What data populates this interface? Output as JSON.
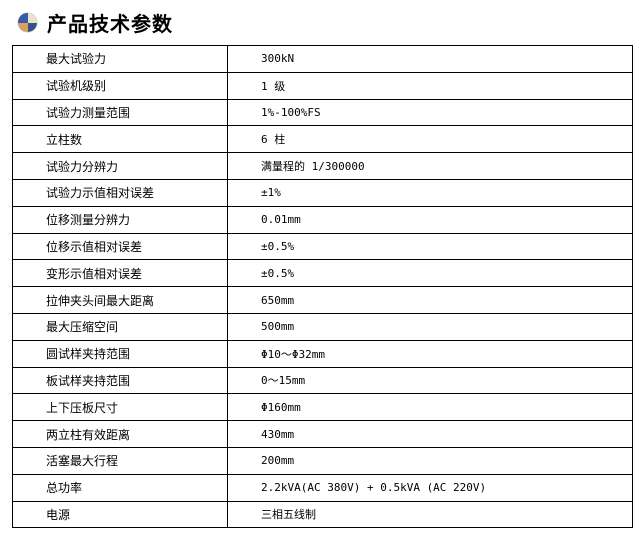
{
  "header": {
    "title": "产品技术参数",
    "icon": "globe-icon"
  },
  "specs": [
    {
      "label": "最大试验力",
      "value": "300kN"
    },
    {
      "label": "试验机级别",
      "value": "1 级"
    },
    {
      "label": "试验力测量范围",
      "value": "1%-100%FS"
    },
    {
      "label": "立柱数",
      "value": "6 柱"
    },
    {
      "label": "试验力分辨力",
      "value": "满量程的 1/300000"
    },
    {
      "label": "试验力示值相对误差",
      "value": "±1%"
    },
    {
      "label": "位移测量分辨力",
      "value": "0.01mm"
    },
    {
      "label": "位移示值相对误差",
      "value": "±0.5%"
    },
    {
      "label": "变形示值相对误差",
      "value": "±0.5%"
    },
    {
      "label": "拉伸夹头间最大距离",
      "value": "650mm"
    },
    {
      "label": "最大压缩空间",
      "value": "500mm"
    },
    {
      "label": "圆试样夹持范围",
      "value": "Φ10～Φ32mm"
    },
    {
      "label": "板试样夹持范围",
      "value": "0～15mm"
    },
    {
      "label": "上下压板尺寸",
      "value": "Φ160mm"
    },
    {
      "label": "两立柱有效距离",
      "value": "430mm"
    },
    {
      "label": "活塞最大行程",
      "value": "200mm"
    },
    {
      "label": "总功率",
      "value": "2.2kVA(AC 380V) + 0.5kVA (AC 220V)"
    },
    {
      "label": "电源",
      "value": "三相五线制"
    }
  ]
}
